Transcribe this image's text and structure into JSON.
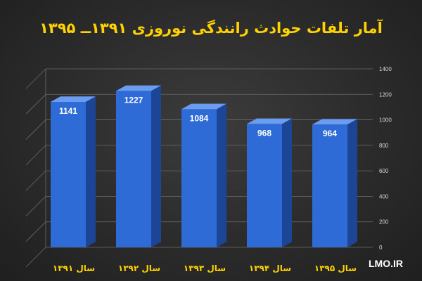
{
  "chart_data": {
    "type": "bar",
    "title": "آمار تلفات حوادث رانندگی نوروزی ۱۳۹۱ــ ۱۳۹۵",
    "categories": [
      "سال ۱۳۹۱",
      "سال ۱۳۹۲",
      "سال ۱۳۹۳",
      "سال ۱۳۹۴",
      "سال ۱۳۹۵"
    ],
    "values": [
      1141,
      1227,
      1084,
      968,
      964
    ],
    "value_labels": [
      "1141",
      "1227",
      "1084",
      "968",
      "964"
    ],
    "yticks": [
      0,
      200,
      400,
      600,
      800,
      1000,
      1200,
      1400
    ],
    "ylim": [
      0,
      1400
    ],
    "xlabel": "",
    "ylabel": "",
    "grid": true,
    "colors": {
      "bar_front": "#2f6bd6",
      "bar_side": "#1d4595",
      "bar_top": "#6a9cf0",
      "title": "#ffd200",
      "category_text": "#ffd200"
    }
  },
  "watermark": "LMO.IR"
}
